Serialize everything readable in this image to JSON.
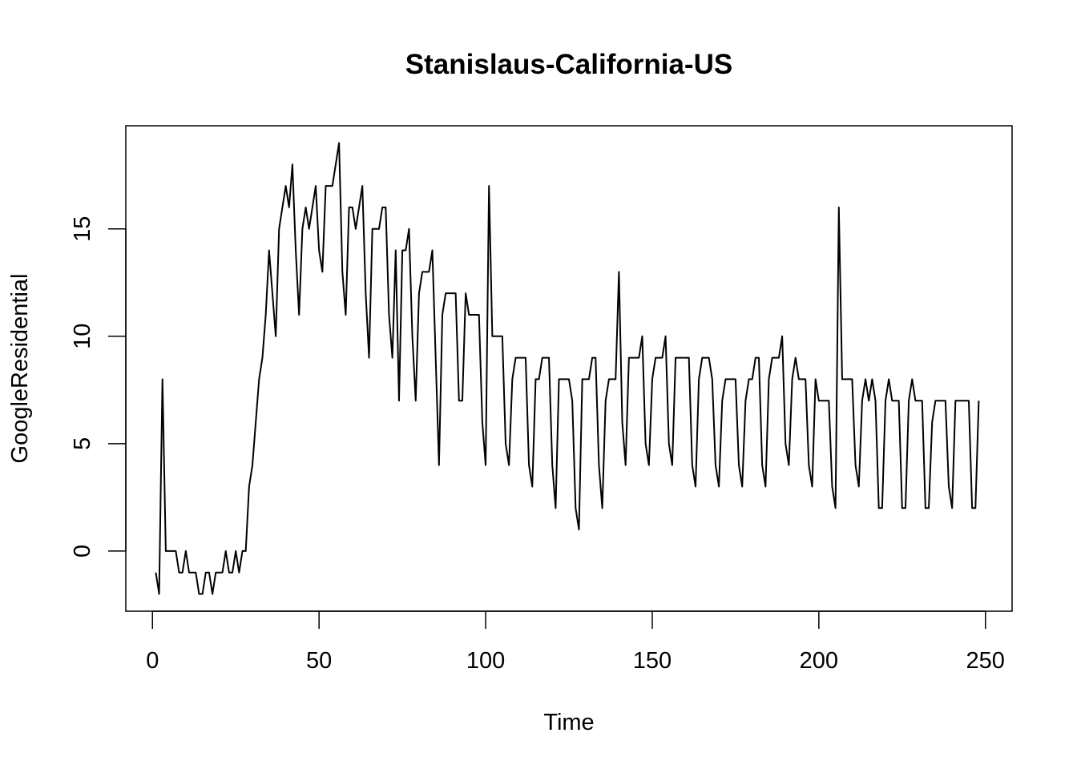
{
  "chart_data": {
    "type": "line",
    "title": "Stanislaus-California-US",
    "xlabel": "Time",
    "ylabel": "GoogleResidential",
    "xlim": [
      -8,
      258
    ],
    "ylim": [
      -2.8,
      19.8
    ],
    "x_ticks": [
      0,
      50,
      100,
      150,
      200,
      250
    ],
    "y_ticks": [
      0,
      5,
      10,
      15
    ],
    "grid": false,
    "legend": "none",
    "line_color": "#000000",
    "series": [
      {
        "values": [
          -1,
          -2,
          8,
          0,
          0,
          0,
          0,
          -1,
          -1,
          0,
          -1,
          -1,
          -1,
          -2,
          -2,
          -1,
          -1,
          -2,
          -1,
          -1,
          -1,
          0,
          -1,
          -1,
          0,
          -1,
          0,
          0,
          3,
          4,
          6,
          8,
          9,
          11,
          14,
          12,
          10,
          15,
          16,
          17,
          16,
          18,
          14,
          11,
          15,
          16,
          15,
          16,
          17,
          14,
          13,
          17,
          17,
          17,
          18,
          19,
          13,
          11,
          16,
          16,
          15,
          16,
          17,
          12,
          9,
          15,
          15,
          15,
          16,
          16,
          11,
          9,
          14,
          7,
          14,
          14,
          15,
          10,
          7,
          12,
          13,
          13,
          13,
          14,
          9,
          4,
          11,
          12,
          12,
          12,
          12,
          7,
          7,
          12,
          11,
          11,
          11,
          11,
          6,
          4,
          17,
          10,
          10,
          10,
          10,
          5,
          4,
          8,
          9,
          9,
          9,
          9,
          4,
          3,
          8,
          8,
          9,
          9,
          9,
          4,
          2,
          8,
          8,
          8,
          8,
          7,
          2,
          1,
          8,
          8,
          8,
          9,
          9,
          4,
          2,
          7,
          8,
          8,
          8,
          13,
          6,
          4,
          9,
          9,
          9,
          9,
          10,
          5,
          4,
          8,
          9,
          9,
          9,
          10,
          5,
          4,
          9,
          9,
          9,
          9,
          9,
          4,
          3,
          8,
          9,
          9,
          9,
          8,
          4,
          3,
          7,
          8,
          8,
          8,
          8,
          4,
          3,
          7,
          8,
          8,
          9,
          9,
          4,
          3,
          8,
          9,
          9,
          9,
          10,
          5,
          4,
          8,
          9,
          8,
          8,
          8,
          4,
          3,
          8,
          7,
          7,
          7,
          7,
          3,
          2,
          16,
          8,
          8,
          8,
          8,
          4,
          3,
          7,
          8,
          7,
          8,
          7,
          2,
          2,
          7,
          8,
          7,
          7,
          7,
          2,
          2,
          7,
          8,
          7,
          7,
          7,
          2,
          2,
          6,
          7,
          7,
          7,
          7,
          3,
          2,
          7,
          7,
          7,
          7,
          7,
          2,
          2,
          7
        ]
      }
    ]
  }
}
